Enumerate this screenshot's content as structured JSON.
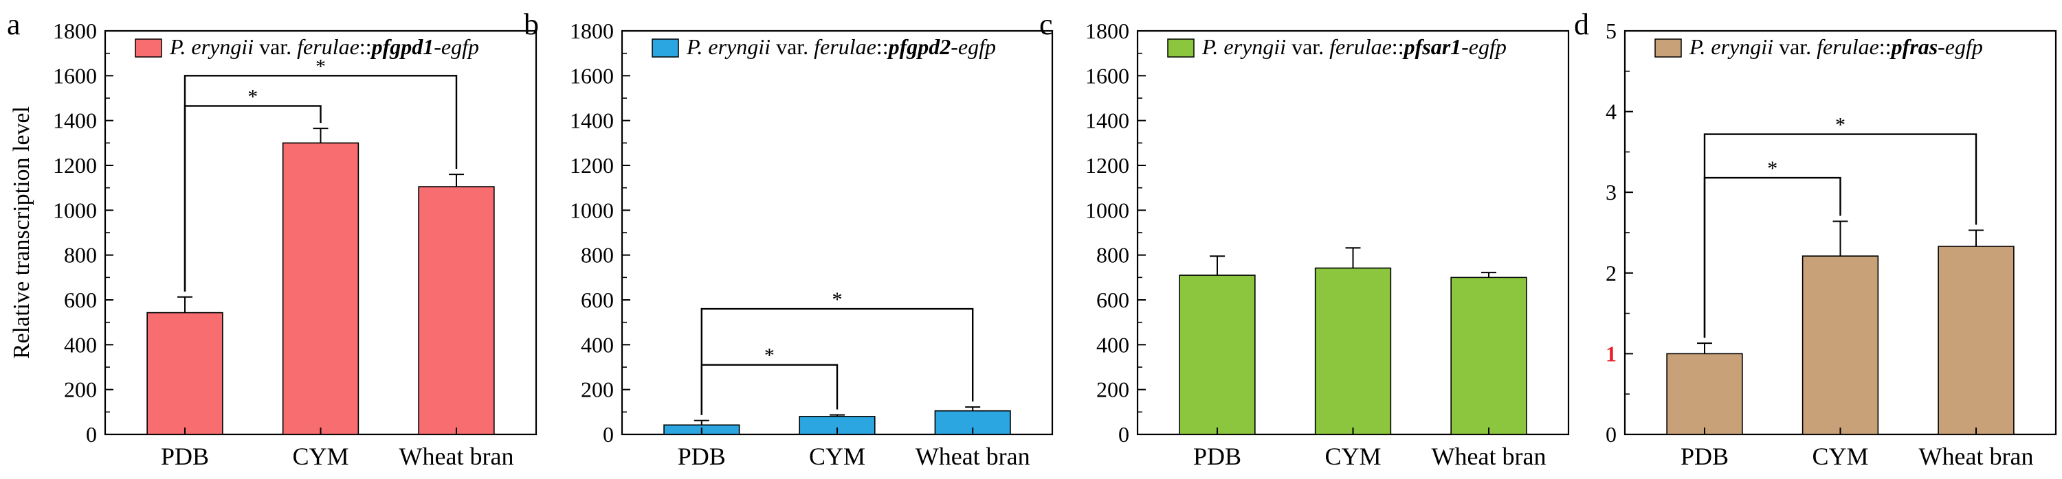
{
  "figure": {
    "ylabel": "Relative transcription level"
  },
  "chart_data": [
    {
      "type": "bar",
      "panel": "a",
      "legend": {
        "prefix": "P. eryngii",
        "mid": " var. ",
        "species": "ferulae",
        "sep": "::",
        "gene": "pfgpd1",
        "suffix": "-egfp"
      },
      "color": "#F86D6F",
      "categories": [
        "PDB",
        "CYM",
        "Wheat bran"
      ],
      "values": [
        543,
        1300,
        1105
      ],
      "errors": [
        70,
        65,
        55
      ],
      "ylim": [
        0,
        1800
      ],
      "yticks": [
        0,
        200,
        400,
        600,
        800,
        1000,
        1200,
        1400,
        1600,
        1800
      ],
      "highlight_tick": null,
      "significance": [
        {
          "from": 0,
          "to": 1,
          "label": "*",
          "level": 1465
        },
        {
          "from": 0,
          "to": 2,
          "label": "*",
          "level": 1600
        }
      ]
    },
    {
      "type": "bar",
      "panel": "b",
      "legend": {
        "prefix": "P. eryngii",
        "mid": " var. ",
        "species": "ferulae",
        "sep": "::",
        "gene": "pfgpd2",
        "suffix": "-egfp"
      },
      "color": "#2CA6E0",
      "categories": [
        "PDB",
        "CYM",
        "Wheat bran"
      ],
      "values": [
        42,
        80,
        105
      ],
      "errors": [
        20,
        7,
        17
      ],
      "ylim": [
        0,
        1800
      ],
      "yticks": [
        0,
        200,
        400,
        600,
        800,
        1000,
        1200,
        1400,
        1600,
        1800
      ],
      "highlight_tick": null,
      "significance": [
        {
          "from": 0,
          "to": 1,
          "label": "*",
          "level": 310
        },
        {
          "from": 0,
          "to": 2,
          "label": "*",
          "level": 560
        }
      ]
    },
    {
      "type": "bar",
      "panel": "c",
      "legend": {
        "prefix": "P. eryngii",
        "mid": " var. ",
        "species": "ferulae",
        "sep": "::",
        "gene": "pfsar1",
        "suffix": "-egfp"
      },
      "color": "#8CC63F",
      "categories": [
        "PDB",
        "CYM",
        "Wheat bran"
      ],
      "values": [
        710,
        742,
        700
      ],
      "errors": [
        85,
        90,
        22
      ],
      "ylim": [
        0,
        1800
      ],
      "yticks": [
        0,
        200,
        400,
        600,
        800,
        1000,
        1200,
        1400,
        1600,
        1800
      ],
      "highlight_tick": null,
      "significance": []
    },
    {
      "type": "bar",
      "panel": "d",
      "legend": {
        "prefix": "P. eryngii",
        "mid": " var. ",
        "species": "ferulae",
        "sep": "::",
        "gene": "pfras",
        "suffix": "-egfp"
      },
      "color": "#C8A178",
      "categories": [
        "PDB",
        "CYM",
        "Wheat bran"
      ],
      "values": [
        1.0,
        2.21,
        2.33
      ],
      "errors": [
        0.13,
        0.43,
        0.2
      ],
      "ylim": [
        0,
        5
      ],
      "yticks": [
        0,
        1,
        2,
        3,
        4,
        5
      ],
      "highlight_tick": 1,
      "highlight_color": "#E8202A",
      "significance": [
        {
          "from": 0,
          "to": 1,
          "label": "*",
          "level": 3.18
        },
        {
          "from": 0,
          "to": 2,
          "label": "*",
          "level": 3.72
        }
      ]
    }
  ]
}
